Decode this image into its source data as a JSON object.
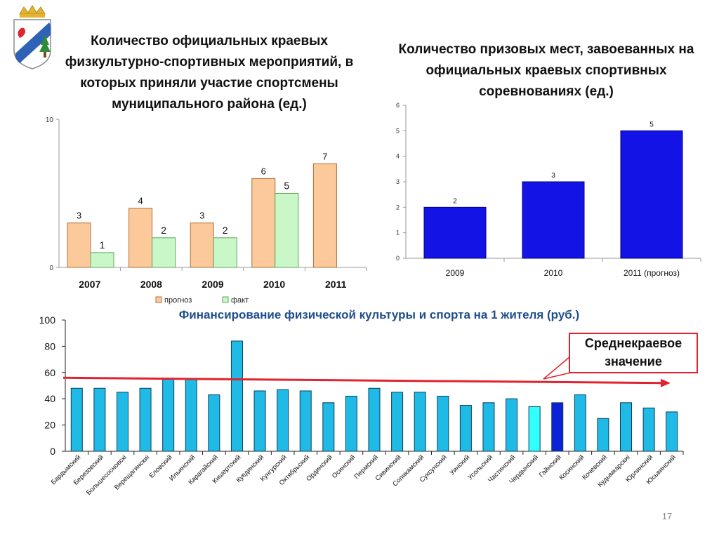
{
  "colors": {
    "forecast": "#fbc99a",
    "fact": "#c9f7c8",
    "places_bar": "#1313e6",
    "funding_bar": "#1fbbe6",
    "funding_highlight_light": "#33ffff",
    "funding_highlight_dark": "#0c22d6",
    "average_line": "#e0232f",
    "title3": "#1f4e8c"
  },
  "emblem": {
    "icon": "coat-of-arms-icon"
  },
  "chart1_title": "Количество официальных краевых физкультурно-спортивных мероприятий, в которых приняли участие спортсмены муниципального района (ед.)",
  "chart2_title": "Количество призовых мест, завоеванных на официальных краевых спортивных соревнованиях (ед.)",
  "chart3_title": "Финансирование физической культуры и спорта на 1 жителя (руб.)",
  "callout": {
    "text": "Среднекраевое значение"
  },
  "page_number": "17",
  "chart_data": [
    {
      "type": "bar",
      "categories": [
        "2007",
        "2008",
        "2009",
        "2010",
        "2011"
      ],
      "series": [
        {
          "name": "прогноз",
          "values": [
            3,
            4,
            3,
            6,
            7
          ]
        },
        {
          "name": "факт",
          "values": [
            1,
            2,
            2,
            5,
            null
          ]
        }
      ],
      "ylim": [
        0,
        10
      ],
      "yticks": [
        "0",
        "10"
      ],
      "legend": "bottom"
    },
    {
      "type": "bar",
      "categories": [
        "2009",
        "2010",
        "2011 (прогноз)"
      ],
      "values": [
        2,
        3,
        5
      ],
      "ylim": [
        0,
        6
      ],
      "yticks": [
        "0",
        "1",
        "2",
        "3",
        "4",
        "5",
        "6"
      ]
    },
    {
      "type": "bar",
      "categories": [
        "Бардымский",
        "Березовский",
        "Большесосновскі",
        "Верещагинскиі",
        "Еловский",
        "Ильинский",
        "Карагайский",
        "Кишертский",
        "Куединский",
        "Кунгурский",
        "Октябрьский",
        "Ординский",
        "Осинский",
        "Пермский",
        "Сивинский",
        "Соликамский",
        "Суксунский",
        "Уинский",
        "Усольский",
        "Частинский",
        "Чердынский",
        "Гайнский",
        "Косинский",
        "Кочевский",
        "Кудымкарскиі",
        "Юрлинский",
        "Юсьвинский"
      ],
      "values": [
        48,
        48,
        45,
        48,
        55,
        55,
        43,
        84,
        46,
        47,
        46,
        37,
        42,
        48,
        45,
        45,
        42,
        35,
        37,
        40,
        34,
        37,
        43,
        25,
        37,
        33,
        30
      ],
      "ylim": [
        0,
        100
      ],
      "yticks": [
        "0",
        "20",
        "40",
        "60",
        "80",
        "100"
      ],
      "reference_line": {
        "label": "Среднекраевое значение",
        "from": 56,
        "to": 52
      }
    }
  ]
}
